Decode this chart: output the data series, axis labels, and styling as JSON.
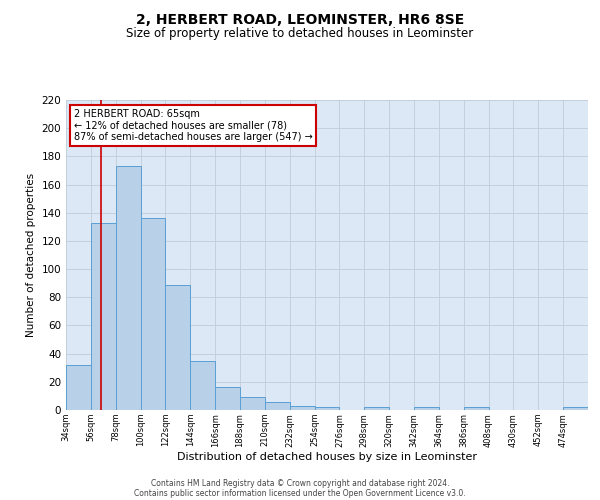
{
  "title": "2, HERBERT ROAD, LEOMINSTER, HR6 8SE",
  "subtitle": "Size of property relative to detached houses in Leominster",
  "xlabel": "Distribution of detached houses by size in Leominster",
  "ylabel": "Number of detached properties",
  "bar_color": "#b8d0e8",
  "bar_edge_color": "#5a9fd4",
  "bin_edges": [
    34,
    56,
    78,
    100,
    122,
    144,
    166,
    188,
    210,
    232,
    254,
    276,
    298,
    320,
    342,
    364,
    386,
    408,
    430,
    452,
    474,
    496
  ],
  "bin_counts": [
    32,
    133,
    173,
    136,
    89,
    35,
    16,
    9,
    6,
    3,
    2,
    0,
    2,
    0,
    2,
    0,
    2,
    0,
    0,
    0,
    2
  ],
  "vline_x": 65,
  "vline_color": "#cc0000",
  "annotation_line1": "2 HERBERT ROAD: 65sqm",
  "annotation_line2": "← 12% of detached houses are smaller (78)",
  "annotation_line3": "87% of semi-detached houses are larger (547) →",
  "annotation_box_color": "#ffffff",
  "annotation_box_edge": "#cc0000",
  "ylim": [
    0,
    220
  ],
  "yticks": [
    0,
    20,
    40,
    60,
    80,
    100,
    120,
    140,
    160,
    180,
    200,
    220
  ],
  "xlim_left": 34,
  "xlim_right": 496,
  "background_color": "#dce8f5",
  "footer_line1": "Contains HM Land Registry data © Crown copyright and database right 2024.",
  "footer_line2": "Contains public sector information licensed under the Open Government Licence v3.0.",
  "title_fontsize": 10,
  "subtitle_fontsize": 8.5,
  "tick_labels": [
    "34sqm",
    "56sqm",
    "78sqm",
    "100sqm",
    "122sqm",
    "144sqm",
    "166sqm",
    "188sqm",
    "210sqm",
    "232sqm",
    "254sqm",
    "276sqm",
    "298sqm",
    "320sqm",
    "342sqm",
    "364sqm",
    "386sqm",
    "408sqm",
    "430sqm",
    "452sqm",
    "474sqm"
  ]
}
